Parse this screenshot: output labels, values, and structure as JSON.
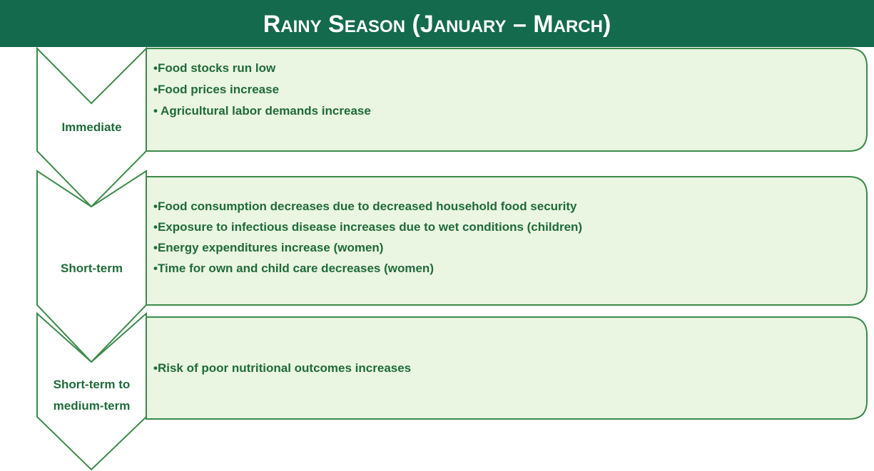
{
  "title": "Rainy Season (January – March)",
  "stages": [
    {
      "label": "Immediate",
      "items": [
        "•Food stocks run low",
        "•Food prices increase",
        "• Agricultural labor demands increase"
      ]
    },
    {
      "label": "Short-term",
      "items": [
        "•Food consumption decreases due to decreased household food security",
        "•Exposure to infectious disease increases due to wet conditions (children)",
        "•Energy expenditures increase (women)",
        "•Time for own and child care decreases (women)"
      ]
    },
    {
      "label": "Short-term to\nmedium-term",
      "items": [
        "•Risk of poor nutritional outcomes increases"
      ]
    }
  ]
}
